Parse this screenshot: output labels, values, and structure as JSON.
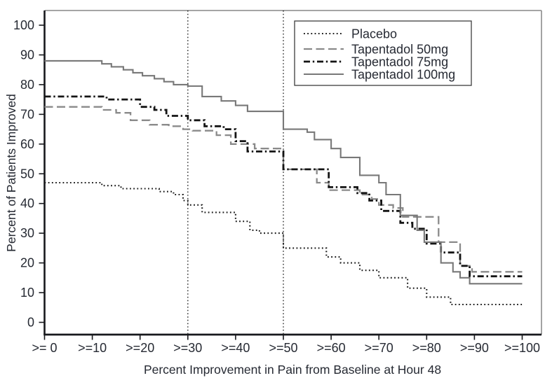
{
  "chart_data": {
    "type": "line",
    "step_mode": "step-after",
    "title": "",
    "xlabel": "Percent Improvement in Pain from Baseline at Hour 48",
    "ylabel": "Percent of Patients Improved",
    "xlim": [
      0,
      104
    ],
    "ylim": [
      0,
      105
    ],
    "grid": false,
    "x_ticks": [
      {
        "value": 0,
        "label": ">= 0"
      },
      {
        "value": 10,
        "label": ">=10"
      },
      {
        "value": 20,
        "label": ">=20"
      },
      {
        "value": 30,
        "label": ">=30"
      },
      {
        "value": 40,
        "label": ">=40"
      },
      {
        "value": 50,
        "label": ">=50"
      },
      {
        "value": 60,
        "label": ">=60"
      },
      {
        "value": 70,
        "label": ">=70"
      },
      {
        "value": 80,
        "label": ">=80"
      },
      {
        "value": 90,
        "label": ">=90"
      },
      {
        "value": 100,
        "label": ">=100"
      }
    ],
    "y_ticks": [
      0,
      10,
      20,
      30,
      40,
      50,
      60,
      70,
      80,
      90,
      100
    ],
    "reference_lines_x": [
      30,
      50
    ],
    "legend": {
      "position": "top-right",
      "border": true,
      "entries": [
        "Placebo",
        "Tapentadol 50mg",
        "Tapentadol 75mg",
        "Tapentadol 100mg"
      ]
    },
    "series": [
      {
        "name": "Placebo",
        "line_style": "dotted",
        "color": "#1c1c1c",
        "points": [
          [
            0,
            47
          ],
          [
            12,
            46
          ],
          [
            16,
            45
          ],
          [
            24,
            44
          ],
          [
            27,
            43
          ],
          [
            29,
            41
          ],
          [
            30,
            39.5
          ],
          [
            33,
            37
          ],
          [
            40,
            34
          ],
          [
            43,
            31
          ],
          [
            45,
            30
          ],
          [
            50,
            25
          ],
          [
            59,
            22
          ],
          [
            62,
            20
          ],
          [
            66,
            17.5
          ],
          [
            70,
            15
          ],
          [
            76,
            11.5
          ],
          [
            80,
            8.5
          ],
          [
            85,
            6
          ],
          [
            100,
            6
          ]
        ]
      },
      {
        "name": "Tapentadol 50mg",
        "line_style": "dashed",
        "color": "#8a8a8a",
        "points": [
          [
            0,
            72.5
          ],
          [
            12,
            71.5
          ],
          [
            15,
            70.5
          ],
          [
            18,
            68
          ],
          [
            22,
            66.5
          ],
          [
            26,
            66
          ],
          [
            29,
            65
          ],
          [
            31,
            64.5
          ],
          [
            36,
            63
          ],
          [
            39,
            60
          ],
          [
            44,
            58.5
          ],
          [
            50,
            51.5
          ],
          [
            57,
            47
          ],
          [
            59.5,
            44.5
          ],
          [
            66,
            43
          ],
          [
            68.5,
            41.5
          ],
          [
            70,
            39.5
          ],
          [
            73,
            38.5
          ],
          [
            75,
            35.5
          ],
          [
            82.5,
            27
          ],
          [
            87,
            19
          ],
          [
            89.5,
            17
          ],
          [
            100,
            17
          ]
        ]
      },
      {
        "name": "Tapentadol 75mg",
        "line_style": "dash-dot",
        "color": "#141414",
        "points": [
          [
            0,
            76
          ],
          [
            13,
            75
          ],
          [
            20,
            72.5
          ],
          [
            23,
            71.5
          ],
          [
            25.5,
            69.5
          ],
          [
            30,
            68
          ],
          [
            33.5,
            66
          ],
          [
            37.5,
            65
          ],
          [
            40,
            61
          ],
          [
            42.5,
            57.5
          ],
          [
            50,
            51.5
          ],
          [
            59.5,
            45.5
          ],
          [
            65.5,
            43.5
          ],
          [
            68,
            41
          ],
          [
            70.5,
            37.5
          ],
          [
            74.5,
            33.5
          ],
          [
            77,
            31.5
          ],
          [
            80,
            26.5
          ],
          [
            83,
            23.5
          ],
          [
            87,
            19
          ],
          [
            89,
            15.5
          ],
          [
            100,
            15.5
          ]
        ]
      },
      {
        "name": "Tapentadol 100mg",
        "line_style": "solid",
        "color": "#787878",
        "points": [
          [
            0,
            88
          ],
          [
            12,
            87
          ],
          [
            14,
            86
          ],
          [
            16.5,
            85
          ],
          [
            18.5,
            84
          ],
          [
            20.5,
            83
          ],
          [
            23,
            82
          ],
          [
            25,
            81
          ],
          [
            27,
            80
          ],
          [
            30,
            79.5
          ],
          [
            33,
            76
          ],
          [
            37,
            74.5
          ],
          [
            40,
            73
          ],
          [
            42.5,
            71
          ],
          [
            50,
            65
          ],
          [
            55,
            64
          ],
          [
            56.5,
            61.5
          ],
          [
            60,
            58.5
          ],
          [
            62,
            55.5
          ],
          [
            66,
            49.5
          ],
          [
            70,
            47
          ],
          [
            71.5,
            43
          ],
          [
            74.5,
            36
          ],
          [
            78,
            31
          ],
          [
            79.5,
            27
          ],
          [
            83,
            20
          ],
          [
            85.5,
            17
          ],
          [
            87,
            15
          ],
          [
            89,
            13
          ],
          [
            100,
            13
          ]
        ]
      }
    ]
  },
  "colors": {
    "background": "#ffffff",
    "axis_line": "#17181c",
    "frame_line": "#8c8c8c",
    "text": "#262a33",
    "reference_line": "#2a2a2a",
    "legend_border": "#3d3d3d"
  }
}
